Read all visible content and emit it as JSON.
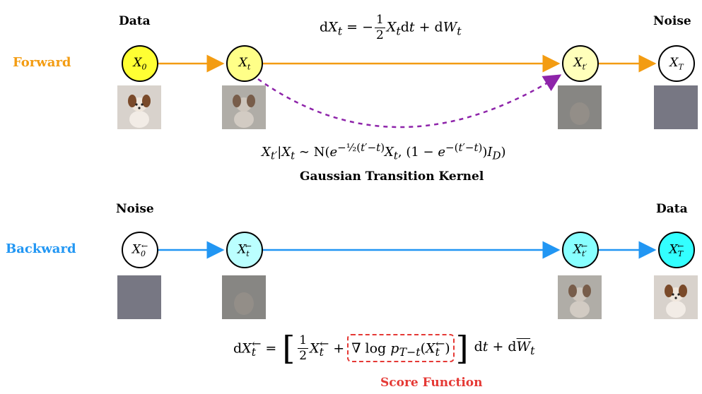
{
  "forward": {
    "label": "Forward",
    "label_color": "#f39c12",
    "left_header": "Data",
    "right_header": "Noise",
    "sde_text": "dX_t = −½ X_t dt + dW_t",
    "nodes": [
      "X_0",
      "X_t",
      "X_t′",
      "X_T"
    ],
    "node_fills": [
      "#ffff33",
      "#ffff88",
      "#ffffbb",
      "#ffffff"
    ],
    "arrow_color": "#f39c12",
    "kernel_arrow_color": "#8e24aa",
    "kernel_formula": "X_t′|X_t ∼ N(e^{−½(t′−t)} X_t, (1 − e^{−(t′−t)}) I_D)",
    "kernel_caption": "Gaussian Transition Kernel"
  },
  "backward": {
    "label": "Backward",
    "label_color": "#2196f3",
    "left_header": "Noise",
    "right_header": "Data",
    "nodes": [
      "X_0^←",
      "X_t^←",
      "X_t′^←",
      "X_T^←"
    ],
    "node_fills": [
      "#ffffff",
      "#bbffff",
      "#88ffff",
      "#33ffff"
    ],
    "arrow_color": "#2196f3",
    "sde_text": "dX_t^← = [ ½ X_t^← + ∇ log p_{T−t}(X_t^←) ] dt + dW̄_t",
    "score_box_color": "#e53935",
    "score_caption": "Score Function"
  },
  "thumbnails": {
    "forward": [
      "clean dog photo",
      "slightly noisy dog",
      "very noisy dog",
      "pure noise"
    ],
    "backward": [
      "pure noise",
      "very noisy dog",
      "slightly noisy dog",
      "clean dog photo"
    ]
  }
}
